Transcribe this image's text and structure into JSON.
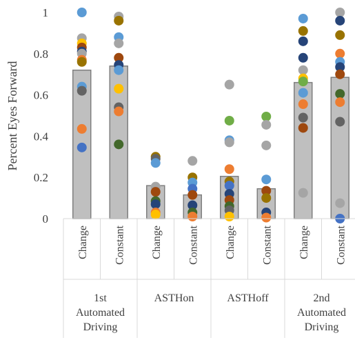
{
  "chart_data": {
    "type": "bar",
    "ylabel": "Percent Eyes Forward",
    "ylim": [
      0,
      1
    ],
    "y_ticks": [
      "0",
      "0.2",
      "0.4",
      "0.6",
      "0.8",
      "1"
    ],
    "grid": false,
    "groups": [
      {
        "label_lines": [
          "1st",
          "Automated",
          "Driving"
        ]
      },
      {
        "label_lines": [
          "ASTHon"
        ]
      },
      {
        "label_lines": [
          "ASTHoff"
        ]
      },
      {
        "label_lines": [
          "2nd",
          "Automated",
          "Driving"
        ]
      }
    ],
    "categories": [
      {
        "group": 0,
        "label": "Change"
      },
      {
        "group": 0,
        "label": "Constant"
      },
      {
        "group": 1,
        "label": "Change"
      },
      {
        "group": 1,
        "label": "Constant"
      },
      {
        "group": 2,
        "label": "Change"
      },
      {
        "group": 2,
        "label": "Constant"
      },
      {
        "group": 3,
        "label": "Change"
      },
      {
        "group": 3,
        "label": "Constant"
      }
    ],
    "bar_values": [
      0.72,
      0.74,
      0.16,
      0.115,
      0.205,
      0.145,
      0.66,
      0.685
    ],
    "points": [
      [
        {
          "y": 1.0,
          "color": "#5B9BD5"
        },
        {
          "y": 0.875,
          "color": "#A5A5A5"
        },
        {
          "y": 0.85,
          "color": "#FFC000"
        },
        {
          "y": 0.83,
          "color": "#9E480E"
        },
        {
          "y": 0.81,
          "color": "#264478"
        },
        {
          "y": 0.8,
          "color": "#A5A5A5"
        },
        {
          "y": 0.77,
          "color": "#ED7D31"
        },
        {
          "y": 0.76,
          "color": "#997300"
        },
        {
          "y": 0.64,
          "color": "#5B9BD5"
        },
        {
          "y": 0.62,
          "color": "#636363"
        },
        {
          "y": 0.435,
          "color": "#ED7D31"
        },
        {
          "y": 0.345,
          "color": "#4472C4"
        }
      ],
      [
        {
          "y": 0.98,
          "color": "#A5A5A5"
        },
        {
          "y": 0.96,
          "color": "#997300"
        },
        {
          "y": 0.88,
          "color": "#5B9BD5"
        },
        {
          "y": 0.85,
          "color": "#A5A5A5"
        },
        {
          "y": 0.78,
          "color": "#9E480E"
        },
        {
          "y": 0.745,
          "color": "#264478"
        },
        {
          "y": 0.72,
          "color": "#5B9BD5"
        },
        {
          "y": 0.63,
          "color": "#FFC000"
        },
        {
          "y": 0.54,
          "color": "#636363"
        },
        {
          "y": 0.52,
          "color": "#ED7D31"
        },
        {
          "y": 0.36,
          "color": "#43682B"
        }
      ],
      [
        {
          "y": 0.3,
          "color": "#997300"
        },
        {
          "y": 0.29,
          "color": "#636363"
        },
        {
          "y": 0.27,
          "color": "#5B9BD5"
        },
        {
          "y": 0.155,
          "color": "#A5A5A5"
        },
        {
          "y": 0.13,
          "color": "#9E480E"
        },
        {
          "y": 0.085,
          "color": "#43682B"
        },
        {
          "y": 0.07,
          "color": "#264478"
        },
        {
          "y": 0.03,
          "color": "#ED7D31"
        },
        {
          "y": 0.02,
          "color": "#FFC000"
        }
      ],
      [
        {
          "y": 0.28,
          "color": "#A5A5A5"
        },
        {
          "y": 0.2,
          "color": "#997300"
        },
        {
          "y": 0.175,
          "color": "#5B9BD5"
        },
        {
          "y": 0.145,
          "color": "#4472C4"
        },
        {
          "y": 0.115,
          "color": "#9E480E"
        },
        {
          "y": 0.065,
          "color": "#264478"
        },
        {
          "y": 0.03,
          "color": "#43682B"
        },
        {
          "y": 0.01,
          "color": "#ED7D31"
        }
      ],
      [
        {
          "y": 0.65,
          "color": "#A5A5A5"
        },
        {
          "y": 0.475,
          "color": "#70AD47"
        },
        {
          "y": 0.38,
          "color": "#5B9BD5"
        },
        {
          "y": 0.37,
          "color": "#A5A5A5"
        },
        {
          "y": 0.24,
          "color": "#ED7D31"
        },
        {
          "y": 0.18,
          "color": "#997300"
        },
        {
          "y": 0.16,
          "color": "#4472C4"
        },
        {
          "y": 0.12,
          "color": "#264478"
        },
        {
          "y": 0.09,
          "color": "#9E480E"
        },
        {
          "y": 0.06,
          "color": "#43682B"
        },
        {
          "y": 0.04,
          "color": "#636363"
        },
        {
          "y": 0.01,
          "color": "#FFC000"
        }
      ],
      [
        {
          "y": 0.495,
          "color": "#70AD47"
        },
        {
          "y": 0.455,
          "color": "#A5A5A5"
        },
        {
          "y": 0.355,
          "color": "#A5A5A5"
        },
        {
          "y": 0.19,
          "color": "#5B9BD5"
        },
        {
          "y": 0.135,
          "color": "#9E480E"
        },
        {
          "y": 0.1,
          "color": "#997300"
        },
        {
          "y": 0.03,
          "color": "#264478"
        },
        {
          "y": 0.005,
          "color": "#ED7D31"
        }
      ],
      [
        {
          "y": 0.97,
          "color": "#5B9BD5"
        },
        {
          "y": 0.91,
          "color": "#997300"
        },
        {
          "y": 0.86,
          "color": "#264478"
        },
        {
          "y": 0.78,
          "color": "#264478"
        },
        {
          "y": 0.72,
          "color": "#A5A5A5"
        },
        {
          "y": 0.68,
          "color": "#FFC000"
        },
        {
          "y": 0.665,
          "color": "#70AD47"
        },
        {
          "y": 0.61,
          "color": "#5B9BD5"
        },
        {
          "y": 0.555,
          "color": "#ED7D31"
        },
        {
          "y": 0.49,
          "color": "#636363"
        },
        {
          "y": 0.44,
          "color": "#9E480E"
        },
        {
          "y": 0.125,
          "color": "#A5A5A5"
        }
      ],
      [
        {
          "y": 1.0,
          "color": "#A5A5A5"
        },
        {
          "y": 0.96,
          "color": "#264478"
        },
        {
          "y": 0.89,
          "color": "#997300"
        },
        {
          "y": 0.8,
          "color": "#ED7D31"
        },
        {
          "y": 0.76,
          "color": "#5B9BD5"
        },
        {
          "y": 0.735,
          "color": "#264478"
        },
        {
          "y": 0.7,
          "color": "#9E480E"
        },
        {
          "y": 0.605,
          "color": "#43682B"
        },
        {
          "y": 0.565,
          "color": "#ED7D31"
        },
        {
          "y": 0.47,
          "color": "#636363"
        },
        {
          "y": 0.075,
          "color": "#A5A5A5"
        },
        {
          "y": 0.0,
          "color": "#4472C4"
        }
      ]
    ]
  }
}
